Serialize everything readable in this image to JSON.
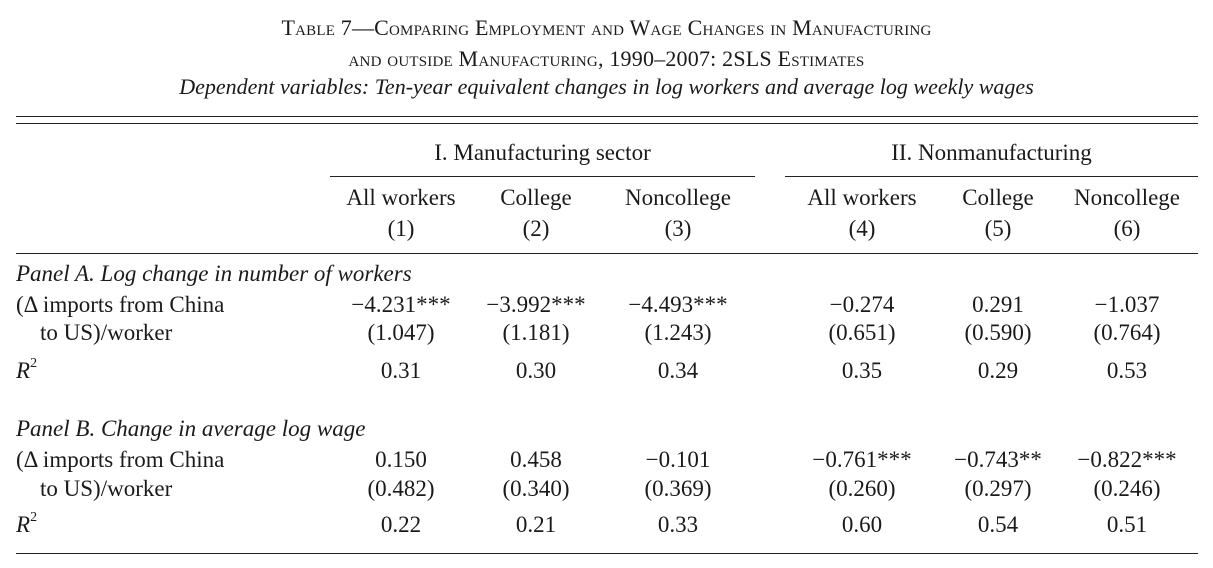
{
  "caption": {
    "title_line1": "Table 7—Comparing Employment and Wage Changes in Manufacturing",
    "title_line2": "and outside Manufacturing, 1990–2007: 2SLS Estimates",
    "subtitle": "Dependent variables: Ten-year equivalent changes in log workers and average log weekly wages"
  },
  "groups": {
    "manufacturing": "I. Manufacturing sector",
    "nonmanufacturing": "II. Nonmanufacturing"
  },
  "columns": [
    {
      "name": "All workers",
      "num": "(1)"
    },
    {
      "name": "College",
      "num": "(2)"
    },
    {
      "name": "Noncollege",
      "num": "(3)"
    },
    {
      "name": "All workers",
      "num": "(4)"
    },
    {
      "name": "College",
      "num": "(5)"
    },
    {
      "name": "Noncollege",
      "num": "(6)"
    }
  ],
  "row_labels": {
    "var_line1": "(Δ imports from China",
    "var_line2": "to US)/worker",
    "r2": "R",
    "r2_sup": "2"
  },
  "panel_a": {
    "title": "Panel A. Log change in number of workers",
    "coef": [
      "−4.231***",
      "−3.992***",
      "−4.493***",
      "−0.274",
      "0.291",
      "−1.037"
    ],
    "se": [
      "(1.047)",
      "(1.181)",
      "(1.243)",
      "(0.651)",
      "(0.590)",
      "(0.764)"
    ],
    "r2": [
      "0.31",
      "0.30",
      "0.34",
      "0.35",
      "0.29",
      "0.53"
    ]
  },
  "panel_b": {
    "title": "Panel B. Change in average log wage",
    "coef": [
      "0.150",
      "0.458",
      "−0.101",
      "−0.761***",
      "−0.743**",
      "−0.822***"
    ],
    "se": [
      "(0.482)",
      "(0.340)",
      "(0.369)",
      "(0.260)",
      "(0.297)",
      "(0.246)"
    ],
    "r2": [
      "0.22",
      "0.21",
      "0.33",
      "0.60",
      "0.54",
      "0.51"
    ]
  }
}
